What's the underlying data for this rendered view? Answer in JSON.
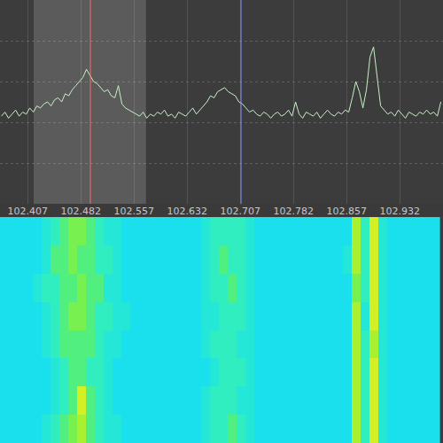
{
  "chart_data": [
    {
      "type": "line",
      "color": "#c8f0c8",
      "x": [
        102.37,
        102.375,
        102.38,
        102.385,
        102.39,
        102.395,
        102.4,
        102.405,
        102.41,
        102.415,
        102.42,
        102.425,
        102.43,
        102.435,
        102.44,
        102.445,
        102.45,
        102.455,
        102.46,
        102.465,
        102.47,
        102.475,
        102.48,
        102.485,
        102.49,
        102.495,
        102.5,
        102.505,
        102.51,
        102.515,
        102.52,
        102.525,
        102.53,
        102.535,
        102.54,
        102.545,
        102.55,
        102.555,
        102.56,
        102.565,
        102.57,
        102.575,
        102.58,
        102.585,
        102.59,
        102.595,
        102.6,
        102.605,
        102.61,
        102.615,
        102.62,
        102.625,
        102.63,
        102.635,
        102.64,
        102.645,
        102.65,
        102.655,
        102.66,
        102.665,
        102.67,
        102.675,
        102.68,
        102.685,
        102.69,
        102.695,
        102.7,
        102.705,
        102.71,
        102.715,
        102.72,
        102.725,
        102.73,
        102.735,
        102.74,
        102.745,
        102.75,
        102.755,
        102.76,
        102.765,
        102.77,
        102.775,
        102.78,
        102.785,
        102.79,
        102.795,
        102.8,
        102.805,
        102.81,
        102.815,
        102.82,
        102.825,
        102.83,
        102.835,
        102.84,
        102.845,
        102.85,
        102.855,
        102.86,
        102.865,
        102.87,
        102.875,
        102.88,
        102.885,
        102.89,
        102.895,
        102.9,
        102.905,
        102.91,
        102.915,
        102.92,
        102.925,
        102.93,
        102.935,
        102.94,
        102.945,
        102.95,
        102.955,
        102.96,
        102.965,
        102.97,
        102.975,
        102.98,
        102.985,
        102.99
      ],
      "values": [
        43,
        45,
        42,
        44,
        46,
        43,
        45,
        44,
        47,
        45,
        48,
        47,
        49,
        50,
        48,
        51,
        52,
        50,
        54,
        53,
        56,
        58,
        60,
        62,
        66,
        63,
        60,
        59,
        57,
        55,
        56,
        53,
        52,
        58,
        49,
        47,
        46,
        45,
        44,
        43,
        45,
        42,
        44,
        43,
        45,
        44,
        46,
        43,
        44,
        42,
        45,
        44,
        43,
        45,
        47,
        44,
        46,
        48,
        50,
        53,
        52,
        55,
        56,
        57,
        55,
        54,
        53,
        50,
        49,
        47,
        45,
        46,
        44,
        43,
        45,
        44,
        42,
        44,
        45,
        43,
        44,
        46,
        43,
        50,
        44,
        42,
        45,
        44,
        43,
        45,
        42,
        44,
        46,
        44,
        43,
        45,
        44,
        46,
        45,
        52,
        60,
        55,
        47,
        56,
        72,
        77,
        62,
        48,
        46,
        44,
        45,
        43,
        46,
        44,
        42,
        45,
        44,
        43,
        45,
        44,
        46,
        44,
        45,
        43,
        50
      ],
      "xlim": [
        102.368,
        102.993
      ],
      "ylim": [
        0,
        100
      ],
      "xticks": [
        102.407,
        102.482,
        102.557,
        102.632,
        102.707,
        102.782,
        102.857,
        102.932
      ],
      "yticks": [
        0,
        20,
        40,
        60,
        80,
        100
      ],
      "grid": true,
      "tick_labels": "x",
      "band": [
        102.4155,
        102.574
      ],
      "markers": [
        {
          "x": 102.4955,
          "color": "#ff6a6a"
        },
        {
          "x": 102.708,
          "color": "#8c8cff"
        }
      ]
    },
    {
      "type": "heatmap",
      "x": [
        102.37,
        102.3825,
        102.395,
        102.4075,
        102.42,
        102.4325,
        102.445,
        102.4575,
        102.47,
        102.4825,
        102.495,
        102.5075,
        102.52,
        102.5325,
        102.545,
        102.5575,
        102.57,
        102.5825,
        102.595,
        102.6075,
        102.62,
        102.6325,
        102.645,
        102.6575,
        102.67,
        102.6825,
        102.695,
        102.7075,
        102.72,
        102.7325,
        102.745,
        102.7575,
        102.77,
        102.7825,
        102.795,
        102.8075,
        102.82,
        102.8325,
        102.845,
        102.8575,
        102.87,
        102.8825,
        102.895,
        102.9075,
        102.92,
        102.9325,
        102.945,
        102.9575,
        102.97,
        102.9825
      ],
      "z": [
        [
          2,
          2,
          2,
          2,
          2,
          3,
          4,
          5,
          6,
          6,
          5,
          4,
          3,
          3,
          2,
          2,
          2,
          2,
          2,
          2,
          2,
          2,
          2,
          3,
          4,
          4,
          4,
          4,
          3,
          2,
          2,
          2,
          2,
          2,
          2,
          2,
          2,
          2,
          2,
          2,
          7,
          4,
          8,
          3,
          2,
          2,
          2,
          2,
          2,
          2
        ],
        [
          2,
          2,
          2,
          2,
          2,
          3,
          5,
          5,
          6,
          5,
          5,
          4,
          4,
          3,
          2,
          2,
          2,
          2,
          2,
          2,
          2,
          2,
          2,
          3,
          4,
          5,
          4,
          4,
          3,
          2,
          2,
          2,
          2,
          2,
          2,
          2,
          2,
          2,
          2,
          3,
          7,
          4,
          8,
          3,
          2,
          2,
          2,
          2,
          2,
          2
        ],
        [
          2,
          2,
          2,
          2,
          3,
          4,
          4,
          5,
          5,
          6,
          5,
          5,
          3,
          3,
          2,
          2,
          2,
          2,
          2,
          2,
          2,
          2,
          2,
          3,
          4,
          4,
          5,
          4,
          3,
          2,
          2,
          2,
          2,
          2,
          2,
          2,
          2,
          2,
          2,
          2,
          6,
          4,
          8,
          3,
          2,
          2,
          2,
          2,
          2,
          2
        ],
        [
          2,
          2,
          2,
          2,
          2,
          3,
          4,
          5,
          6,
          6,
          5,
          4,
          4,
          3,
          3,
          2,
          2,
          2,
          2,
          2,
          2,
          2,
          2,
          3,
          3,
          4,
          4,
          4,
          3,
          2,
          2,
          2,
          2,
          2,
          2,
          2,
          2,
          2,
          2,
          2,
          7,
          3,
          8,
          3,
          2,
          2,
          2,
          2,
          2,
          2
        ],
        [
          2,
          2,
          2,
          2,
          2,
          3,
          4,
          5,
          5,
          5,
          5,
          4,
          3,
          3,
          2,
          2,
          2,
          2,
          2,
          2,
          2,
          2,
          2,
          3,
          4,
          4,
          4,
          3,
          3,
          2,
          2,
          2,
          2,
          2,
          2,
          2,
          2,
          2,
          2,
          2,
          7,
          4,
          7,
          3,
          2,
          2,
          2,
          2,
          2,
          2
        ],
        [
          2,
          2,
          2,
          2,
          2,
          2,
          3,
          4,
          5,
          5,
          4,
          4,
          3,
          2,
          2,
          2,
          2,
          2,
          2,
          2,
          2,
          2,
          2,
          2,
          3,
          4,
          4,
          4,
          3,
          2,
          2,
          2,
          2,
          2,
          2,
          2,
          2,
          2,
          2,
          2,
          7,
          4,
          8,
          3,
          2,
          2,
          2,
          2,
          2,
          2
        ],
        [
          2,
          2,
          2,
          2,
          2,
          2,
          3,
          4,
          5,
          8,
          5,
          4,
          3,
          2,
          2,
          2,
          2,
          2,
          2,
          2,
          2,
          2,
          2,
          3,
          4,
          4,
          4,
          3,
          3,
          2,
          2,
          2,
          2,
          2,
          2,
          2,
          2,
          2,
          2,
          2,
          7,
          4,
          8,
          3,
          2,
          2,
          2,
          2,
          2,
          2
        ],
        [
          2,
          2,
          2,
          2,
          2,
          3,
          4,
          5,
          6,
          7,
          5,
          4,
          3,
          3,
          2,
          2,
          2,
          2,
          2,
          2,
          2,
          2,
          2,
          3,
          4,
          4,
          5,
          4,
          3,
          2,
          2,
          2,
          2,
          2,
          2,
          2,
          2,
          2,
          2,
          2,
          7,
          4,
          8,
          3,
          2,
          2,
          2,
          2,
          2,
          2
        ]
      ],
      "xlim": [
        102.368,
        102.993
      ],
      "zlim": [
        0,
        10
      ],
      "tick_labels": false
    }
  ]
}
